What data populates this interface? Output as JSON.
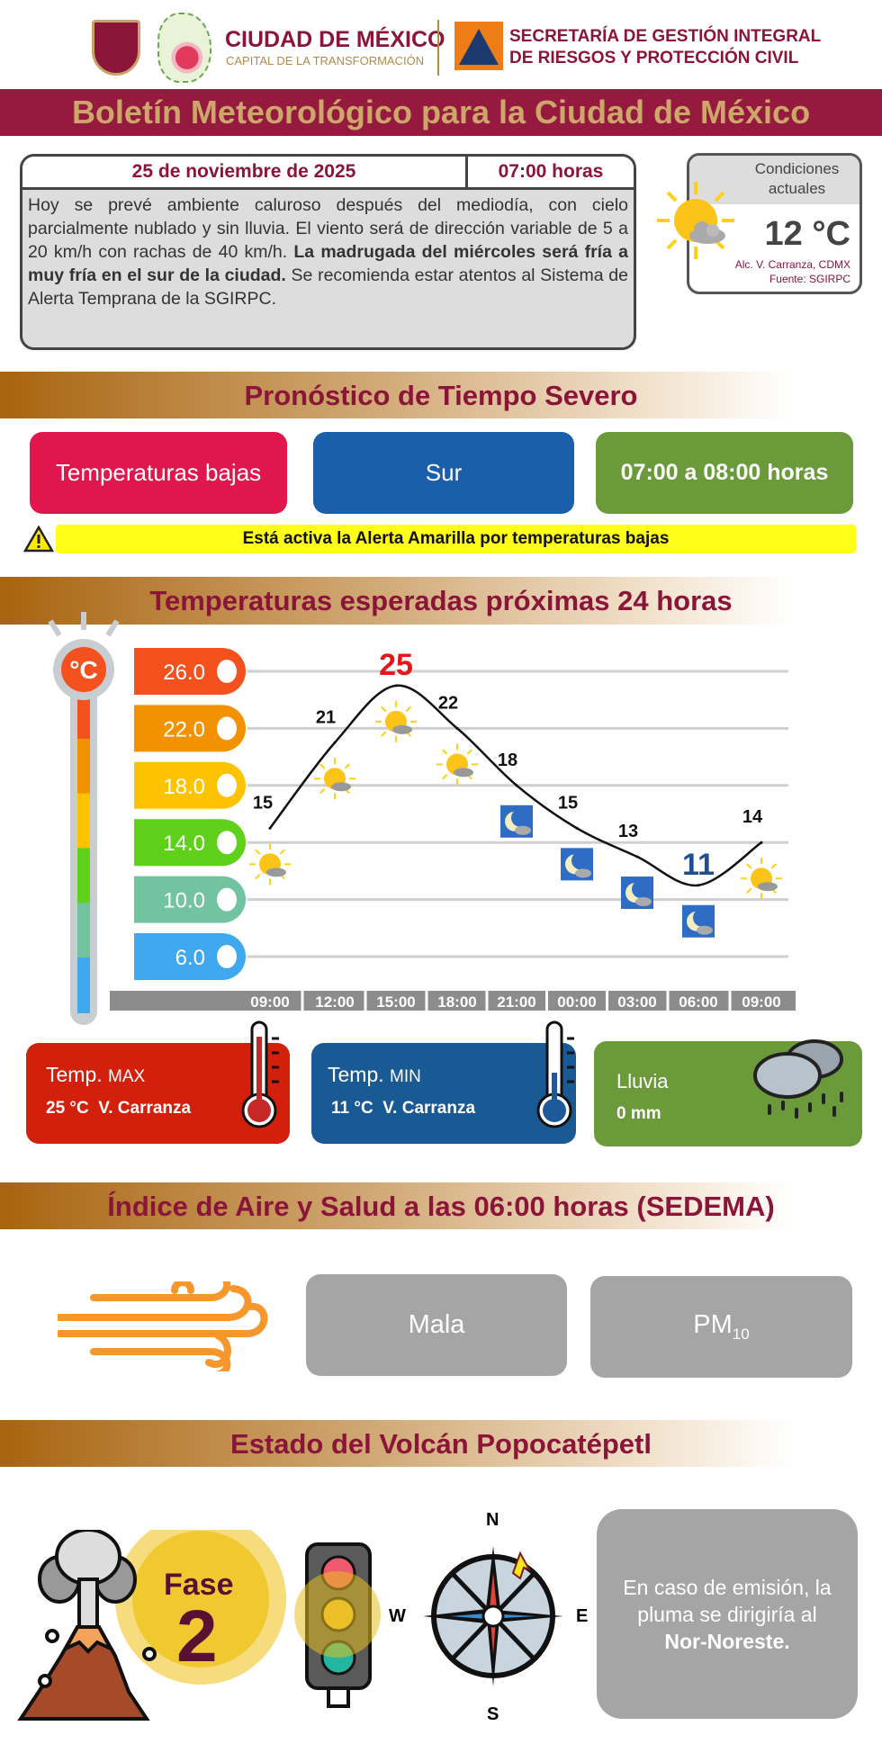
{
  "header": {
    "city_name": "CIUDAD DE MÉXICO",
    "city_slogan": "CAPITAL DE LA TRANSFORMACIÓN",
    "agency_line1": "SECRETARÍA DE GESTIÓN INTEGRAL",
    "agency_line2": "DE RIESGOS Y PROTECCIÓN CIVIL"
  },
  "title": "Boletín Meteorológico para la Ciudad de México",
  "bulletin": {
    "date": "25 de noviembre de 2025",
    "time": "07:00 horas",
    "text_pre": "Hoy se prevé ambiente caluroso después del mediodía, con cielo parcialmente nublado y sin lluvia. El viento será de dirección variable de 5 a 20 km/h con rachas de 40 km/h. ",
    "text_bold": "La madrugada del miércoles será fría a muy fría en el sur de la ciudad.",
    "text_post": " Se recomienda estar atentos al Sistema de Alerta Temprana de la SGIRPC."
  },
  "current": {
    "label": "Condiciones actuales",
    "temp": "12 °C",
    "location": "Alc. V. Carranza, CDMX",
    "source": "Fuente: SGIRPC",
    "icon": "sun-cloud"
  },
  "severe": {
    "title": "Pronóstico de Tiempo Severo",
    "phenomenon": "Temperaturas bajas",
    "zone": "Sur",
    "schedule": "07:00 a 08:00 horas",
    "alert": "Está activa la Alerta Amarilla por temperaturas bajas",
    "colors": {
      "phenomenon": "#e0174c",
      "zone": "#1b5faa",
      "schedule": "#6b9a3a",
      "alert": "#ffff1a"
    }
  },
  "temps_title": "Temperaturas esperadas próximas 24 horas",
  "chart_data": {
    "type": "line",
    "unit_badge": "°C",
    "y_ticks": [
      "26.0",
      "22.0",
      "18.0",
      "14.0",
      "10.0",
      "6.0"
    ],
    "y_tick_values": [
      26,
      22,
      18,
      14,
      10,
      6
    ],
    "ylim": [
      6,
      26
    ],
    "grid": true,
    "x": [
      "09:00",
      "12:00",
      "15:00",
      "18:00",
      "21:00",
      "00:00",
      "03:00",
      "06:00",
      "09:00"
    ],
    "values": [
      15,
      21,
      25,
      22,
      18,
      15,
      13,
      11,
      14
    ],
    "conditions": [
      "sun-cloud",
      "sun-cloud",
      "sun-cloud",
      "sun-cloud",
      "moon-cloud",
      "moon-cloud",
      "moon-cloud",
      "moon-cloud",
      "sun-cloud"
    ],
    "max_color": "#e8161b",
    "min_color": "#1f4f8f",
    "tick_colors": [
      "#f4511e",
      "#f39200",
      "#fdc300",
      "#5fd11a",
      "#72c3a0",
      "#3fa8ee"
    ]
  },
  "summary": {
    "max_label": "Temp.",
    "max_tag": "MAX",
    "max_value": "25 °C  V. Carranza",
    "min_label": "Temp.",
    "min_tag": "MIN",
    "min_value": "11 °C  V. Carranza",
    "rain_label": "Lluvia",
    "rain_value": "0 mm"
  },
  "air": {
    "title": "Índice de Aire y Salud a las 06:00 horas (SEDEMA)",
    "quality": "Mala",
    "pollutant": "PM",
    "pollutant_sub": "10"
  },
  "volcano": {
    "title": "Estado del Volcán Popocatépetl",
    "phase_label": "Fase",
    "phase_number": "2",
    "traffic_light": "amarillo",
    "compass": {
      "n": "N",
      "s": "S",
      "e": "E",
      "w": "W"
    },
    "plume_pre": "En caso de emisión, la pluma se dirigiría al ",
    "plume_bold": "Nor-Noreste."
  }
}
